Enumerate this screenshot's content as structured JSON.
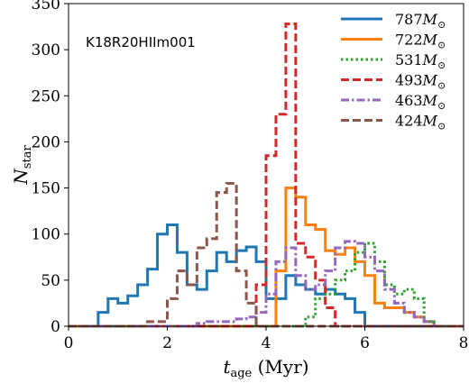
{
  "chart_data": {
    "type": "histogram-step",
    "annotation": "K18R20HIIm001",
    "xlabel": "t_age (Myr)",
    "xlabel_parts": {
      "symbol": "t",
      "subscript": "age",
      "unit": " (Myr)"
    },
    "ylabel": "N_star",
    "ylabel_parts": {
      "symbol": "N",
      "subscript": "star"
    },
    "xlim": [
      0,
      8
    ],
    "ylim": [
      0,
      350
    ],
    "xticks": [
      0,
      2,
      4,
      6,
      8
    ],
    "yticks": [
      0,
      50,
      100,
      150,
      200,
      250,
      300,
      350
    ],
    "grid": false,
    "legend_position": "upper-right",
    "bin_width": 0.2,
    "series": [
      {
        "name": "787 M⊙",
        "label_number": "787",
        "label_unit": "M",
        "label_sub": "⊙",
        "color": "#1f77b4",
        "linestyle": "solid",
        "bin_start": 0.6,
        "counts": [
          15,
          30,
          25,
          33,
          45,
          62,
          100,
          110,
          80,
          45,
          40,
          60,
          80,
          70,
          82,
          86,
          70,
          30,
          30,
          55,
          45,
          40,
          35,
          40,
          35,
          30,
          15
        ]
      },
      {
        "name": "722 M⊙",
        "label_number": "722",
        "label_unit": "M",
        "label_sub": "⊙",
        "color": "#ff7f0e",
        "linestyle": "solid",
        "bin_start": 4.2,
        "counts": [
          60,
          150,
          140,
          110,
          105,
          82,
          78,
          85,
          70,
          55,
          25,
          20,
          20,
          15,
          10,
          5
        ]
      },
      {
        "name": "531 M⊙",
        "label_number": "531",
        "label_unit": "M",
        "label_sub": "⊙",
        "color": "#2ca02c",
        "linestyle": "dotted",
        "bin_start": 4.8,
        "counts": [
          10,
          30,
          35,
          50,
          60,
          80,
          90,
          70,
          45,
          35,
          40,
          30,
          5
        ]
      },
      {
        "name": "493 M⊙",
        "label_number": "493",
        "label_unit": "M",
        "label_sub": "⊙",
        "color": "#d62728",
        "linestyle": "dashed",
        "bin_start": 3.8,
        "counts": [
          45,
          185,
          230,
          328,
          90,
          75,
          50,
          20
        ]
      },
      {
        "name": "463 M⊙",
        "label_number": "463",
        "label_unit": "M",
        "label_sub": "⊙",
        "color": "#9467bd",
        "linestyle": "dashdot",
        "bin_start": 2.6,
        "counts": [
          3,
          5,
          5,
          5,
          8,
          10,
          15,
          35,
          70,
          85,
          55,
          40,
          45,
          60,
          85,
          92,
          90,
          75,
          60,
          40,
          25,
          15,
          10,
          5
        ]
      },
      {
        "name": "424 M⊙",
        "label_number": "424",
        "label_unit": "M",
        "label_sub": "⊙",
        "color": "#8c564b",
        "linestyle": "dashed",
        "bin_start": 1.6,
        "counts": [
          5,
          5,
          30,
          60,
          45,
          85,
          95,
          145,
          155,
          60,
          25
        ]
      }
    ]
  }
}
